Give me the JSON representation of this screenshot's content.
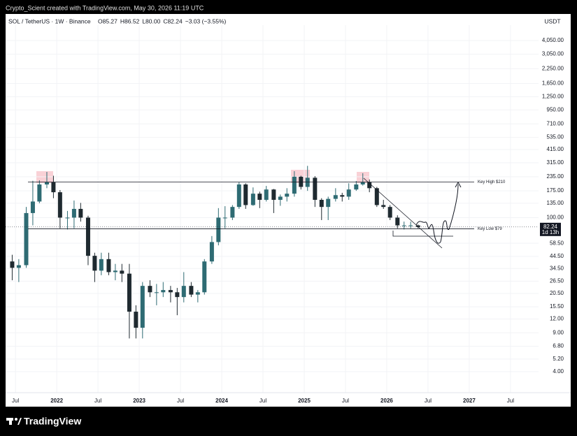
{
  "header": "Crypto_Scient created with TradingView.com, May 30, 2026 11:19 UTC",
  "footer": "TradingView",
  "chart_data": {
    "type": "candlestick",
    "symbol": "SOL / TetherUS · 1W · Binance",
    "ohlc_legend": [
      "O85.27",
      "H86.52",
      "L80.00",
      "C82.24",
      "−3.03 (−3.55%)"
    ],
    "currency": "USDT",
    "log_scale": true,
    "grid": true,
    "up_color": "#2e6b73",
    "down_color": "#1f2a30",
    "last_price": 82.24,
    "countdown": "1d 13h",
    "x": [
      2021.46,
      2021.54,
      2021.63,
      2021.71,
      2021.79,
      2021.88,
      2021.96,
      2022.04,
      2022.13,
      2022.21,
      2022.29,
      2022.38,
      2022.46,
      2022.54,
      2022.63,
      2022.71,
      2022.79,
      2022.88,
      2022.96,
      2023.04,
      2023.13,
      2023.21,
      2023.29,
      2023.38,
      2023.46,
      2023.54,
      2023.63,
      2023.71,
      2023.79,
      2023.88,
      2023.96,
      2024.04,
      2024.13,
      2024.21,
      2024.29,
      2024.38,
      2024.46,
      2024.54,
      2024.63,
      2024.71,
      2024.79,
      2024.88,
      2024.96,
      2025.04,
      2025.13,
      2025.21,
      2025.29,
      2025.38,
      2025.46,
      2025.54,
      2025.63,
      2025.71,
      2025.79,
      2025.88,
      2025.96,
      2026.04,
      2026.13,
      2026.21,
      2026.29,
      2026.38
    ],
    "open": [
      40,
      35,
      37,
      110,
      140,
      200,
      210,
      170,
      100,
      100,
      120,
      100,
      45,
      33,
      42,
      32,
      33,
      31,
      14,
      10,
      24,
      21,
      21,
      22,
      21,
      19,
      24,
      20,
      21,
      40,
      60,
      100,
      100,
      125,
      200,
      130,
      165,
      145,
      180,
      145,
      155,
      165,
      235,
      190,
      230,
      145,
      125,
      148,
      160,
      155,
      180,
      200,
      210,
      185,
      130,
      125,
      100,
      85,
      85,
      85
    ],
    "high": [
      46,
      42,
      125,
      216,
      218,
      260,
      240,
      178,
      115,
      143,
      136,
      104,
      48,
      48,
      48,
      38,
      38,
      38,
      16,
      26,
      27,
      25,
      26,
      24,
      23,
      32,
      26,
      22,
      42,
      68,
      122,
      127,
      130,
      210,
      205,
      188,
      172,
      194,
      182,
      162,
      185,
      264,
      240,
      295,
      238,
      150,
      155,
      185,
      168,
      205,
      215,
      253,
      222,
      190,
      145,
      130,
      105,
      92,
      92,
      86.52
    ],
    "low": [
      27,
      26,
      35,
      85,
      135,
      185,
      150,
      80,
      78,
      80,
      92,
      37,
      26,
      30,
      30,
      27,
      26,
      8,
      8,
      8,
      19,
      16,
      19,
      17,
      13,
      17,
      19,
      17,
      20,
      38,
      56,
      80,
      95,
      120,
      120,
      128,
      122,
      140,
      110,
      128,
      140,
      155,
      180,
      175,
      125,
      95,
      95,
      140,
      140,
      145,
      175,
      195,
      170,
      125,
      120,
      95,
      80,
      78,
      80,
      80
    ],
    "close": [
      35,
      37,
      110,
      140,
      200,
      210,
      170,
      100,
      100,
      120,
      100,
      45,
      33,
      42,
      32,
      33,
      31,
      14,
      10,
      24,
      21,
      21,
      22,
      21,
      19,
      24,
      20,
      21,
      40,
      60,
      100,
      100,
      125,
      200,
      130,
      165,
      145,
      180,
      145,
      155,
      165,
      235,
      190,
      230,
      145,
      125,
      148,
      160,
      155,
      180,
      200,
      210,
      185,
      130,
      125,
      100,
      85,
      85,
      85,
      82.24
    ],
    "xlim": [
      2021.38,
      2027.84
    ],
    "xticks": [
      {
        "value": 2021.5,
        "label": "Jul"
      },
      {
        "value": 2022,
        "label": "2022"
      },
      {
        "value": 2022.5,
        "label": "Jul"
      },
      {
        "value": 2023,
        "label": "2023"
      },
      {
        "value": 2023.5,
        "label": "Jul"
      },
      {
        "value": 2024,
        "label": "2024"
      },
      {
        "value": 2024.5,
        "label": "Jul"
      },
      {
        "value": 2025,
        "label": "2025"
      },
      {
        "value": 2025.5,
        "label": "Jul"
      },
      {
        "value": 2026,
        "label": "2026"
      },
      {
        "value": 2026.5,
        "label": "Jul"
      },
      {
        "value": 2027,
        "label": "2027"
      },
      {
        "value": 2027.5,
        "label": "Jul"
      }
    ],
    "ylim": [
      3.3,
      5270
    ],
    "yticks": [
      {
        "value": 4050,
        "label": "4,050.00"
      },
      {
        "value": 3050,
        "label": "3,050.00"
      },
      {
        "value": 2250,
        "label": "2,250.00"
      },
      {
        "value": 1650,
        "label": "1,650.00"
      },
      {
        "value": 1250,
        "label": "1,250.00"
      },
      {
        "value": 950,
        "label": "950.00"
      },
      {
        "value": 710,
        "label": "710.00"
      },
      {
        "value": 535,
        "label": "535.00"
      },
      {
        "value": 415,
        "label": "415.00"
      },
      {
        "value": 315,
        "label": "315.00"
      },
      {
        "value": 235,
        "label": "235.00"
      },
      {
        "value": 175,
        "label": "175.00"
      },
      {
        "value": 135,
        "label": "135.00"
      },
      {
        "value": 100,
        "label": "100.00"
      },
      {
        "value": 58.5,
        "label": "58.50"
      },
      {
        "value": 44.5,
        "label": "44.50"
      },
      {
        "value": 34.5,
        "label": "34.50"
      },
      {
        "value": 26.5,
        "label": "26.50"
      },
      {
        "value": 20.5,
        "label": "20.50"
      },
      {
        "value": 15.5,
        "label": "15.50"
      },
      {
        "value": 12,
        "label": "12.00"
      },
      {
        "value": 9,
        "label": "9.00"
      },
      {
        "value": 6.8,
        "label": "6.80"
      },
      {
        "value": 5.2,
        "label": "5.20"
      },
      {
        "value": 4,
        "label": "4.00"
      }
    ],
    "annotations": [
      {
        "label": "Key High $210",
        "value": 210
      },
      {
        "label": "Key Low $79",
        "value": 79
      }
    ]
  }
}
